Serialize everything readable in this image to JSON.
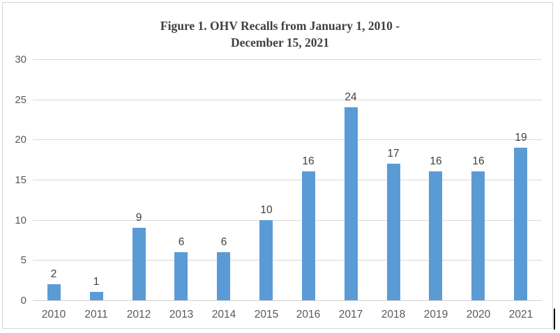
{
  "title": {
    "line1": "Figure 1. OHV Recalls from January 1, 2010 -",
    "line2": "December 15, 2021"
  },
  "chart_data": {
    "type": "bar",
    "title": "Figure 1. OHV Recalls from January 1, 2010 - December 15, 2021",
    "categories": [
      "2010",
      "2011",
      "2012",
      "2013",
      "2014",
      "2015",
      "2016",
      "2017",
      "2018",
      "2019",
      "2020",
      "2021"
    ],
    "values": [
      2,
      1,
      9,
      6,
      6,
      10,
      16,
      24,
      17,
      16,
      16,
      19
    ],
    "xlabel": "",
    "ylabel": "",
    "ylim": [
      0,
      30
    ],
    "yticks": [
      0,
      5,
      10,
      15,
      20,
      25,
      30
    ],
    "grid": true,
    "legend_position": "none",
    "data_labels": true,
    "colors": {
      "bar": "#5b9bd5",
      "gridline": "#d9d9d9",
      "tick_label": "#595959",
      "data_label": "#404040",
      "title": "#404040",
      "border": "#d6d6d6"
    }
  }
}
